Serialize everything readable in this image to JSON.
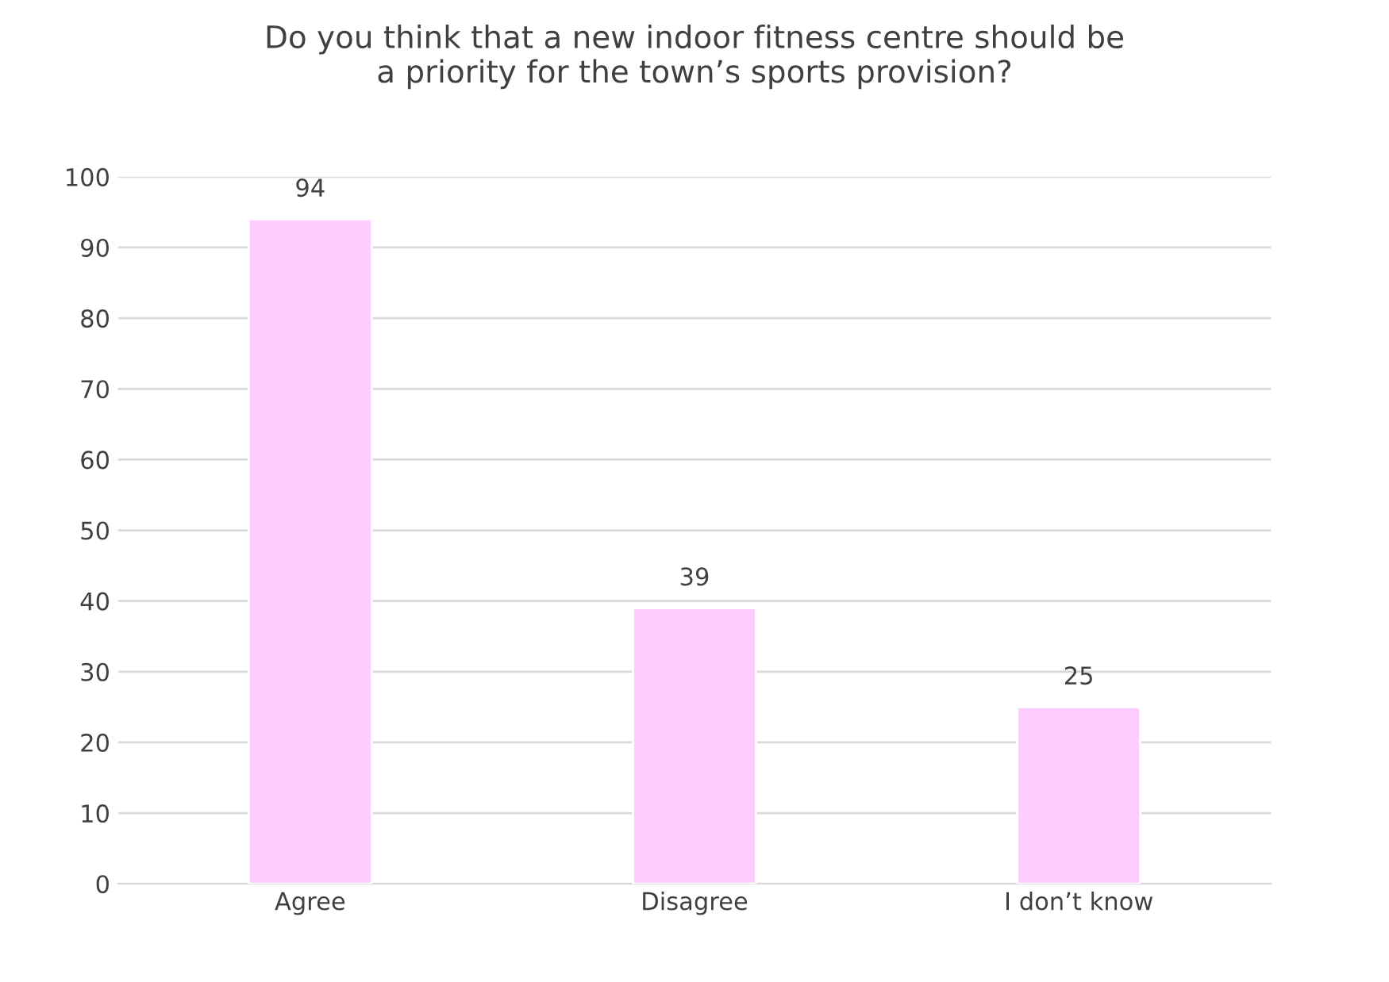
{
  "chart_data": {
    "type": "bar",
    "title": "Do you think that a new indoor fitness centre should be\na priority for the town’s sports provision?",
    "categories": [
      "Agree",
      "Disagree",
      "I don’t know"
    ],
    "values": [
      94,
      39,
      25
    ],
    "color": "#ffccff",
    "ylim": [
      0,
      100
    ],
    "yticks": [
      0,
      10,
      20,
      30,
      40,
      50,
      60,
      70,
      80,
      90,
      100
    ],
    "grid": "y",
    "data_labels": true
  }
}
